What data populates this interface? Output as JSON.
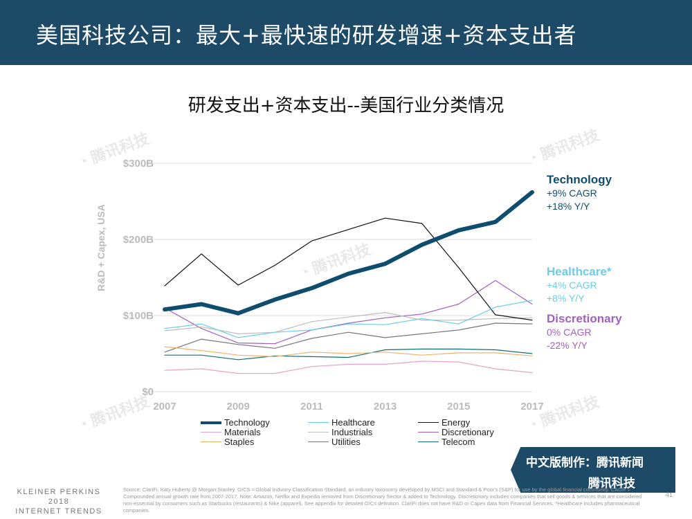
{
  "header": {
    "title": "美国科技公司：最大+最快速的研发增速+资本支出者"
  },
  "watermark": "腾讯科技",
  "chart_data": {
    "type": "line",
    "title": "研发支出+资本支出--美国行业分类情况",
    "ylabel": "R&D + Capex, USA",
    "xlabel": "",
    "x": [
      2007,
      2008,
      2009,
      2010,
      2011,
      2012,
      2013,
      2014,
      2015,
      2016,
      2017
    ],
    "xticks": [
      "2007",
      "2009",
      "2011",
      "2013",
      "2015",
      "2017"
    ],
    "yticks": [
      "$0",
      "$100B",
      "$200B",
      "$300B"
    ],
    "ylim": [
      0,
      300
    ],
    "grid": true,
    "series": [
      {
        "name": "Technology",
        "color": "#0e4d6e",
        "width": 6,
        "values": [
          108,
          115,
          103,
          121,
          136,
          155,
          168,
          193,
          212,
          223,
          262
        ]
      },
      {
        "name": "Healthcare",
        "color": "#6ccde6",
        "width": 1.2,
        "values": [
          83,
          89,
          71,
          78,
          81,
          89,
          88,
          96,
          89,
          111,
          120
        ]
      },
      {
        "name": "Energy",
        "color": "#111111",
        "width": 1.2,
        "values": [
          139,
          181,
          140,
          166,
          198,
          213,
          228,
          221,
          163,
          101,
          94
        ]
      },
      {
        "name": "Materials",
        "color": "#e8a3c4",
        "width": 1.2,
        "values": [
          28,
          30,
          24,
          24,
          33,
          36,
          36,
          40,
          39,
          30,
          25
        ]
      },
      {
        "name": "Industrials",
        "color": "#bdbdbd",
        "width": 1.2,
        "values": [
          80,
          85,
          76,
          78,
          92,
          98,
          104,
          94,
          94,
          96,
          97
        ]
      },
      {
        "name": "Discretionary",
        "color": "#a25fc0",
        "width": 1.2,
        "values": [
          110,
          83,
          64,
          63,
          81,
          90,
          97,
          102,
          115,
          146,
          115
        ]
      },
      {
        "name": "Staples",
        "color": "#f0b36a",
        "width": 1.2,
        "values": [
          59,
          54,
          48,
          46,
          52,
          50,
          52,
          48,
          51,
          51,
          47
        ]
      },
      {
        "name": "Utilities",
        "color": "#777777",
        "width": 1.2,
        "values": [
          52,
          69,
          62,
          57,
          70,
          78,
          71,
          76,
          81,
          90,
          89
        ]
      },
      {
        "name": "Telecom",
        "color": "#106e70",
        "width": 1.2,
        "values": [
          48,
          48,
          42,
          47,
          46,
          45,
          55,
          56,
          56,
          55,
          50
        ]
      }
    ],
    "annotations": [
      {
        "name": "Technology",
        "lines": [
          "+9% CAGR",
          "+18% Y/Y"
        ],
        "color": "#0e4d6e"
      },
      {
        "name": "Healthcare*",
        "lines": [
          "+4% CAGR",
          "+8% Y/Y"
        ],
        "color": "#6ccde6"
      },
      {
        "name": "Discretionary",
        "lines": [
          "0% CAGR",
          "-22% Y/Y"
        ],
        "color": "#a25fc0"
      }
    ],
    "legend": "bottom"
  },
  "badge": {
    "line1": "中文版制作：腾讯新闻",
    "line2": "腾讯科技"
  },
  "footer": {
    "brand": [
      "KLEINER PERKINS",
      "2018",
      "INTERNET TRENDS"
    ],
    "source": "Source: ClariFi, Katy Huberty @ Morgan Stanley. GICS = Global Industry Classification Standard, an industry taxonomy developed by MSCI and Standard & Poor's (S&P) for use by the global financial community. CAGR = Compounded annual growth rate from 2007-2017. Note: Amazon, Netflix and Expedia removed from Discretionary Sector & added to Technology. Discretionary includes companies that sell goods & services that are considered non-essential by consumers such as Starbucks (restaurants) & Nike (apparel). See appendix for detailed GICs definition. ClariFi does not have R&D or Capex data from Financial Services. *Healthcare includes pharmaceutical companies.",
    "page": "41"
  }
}
